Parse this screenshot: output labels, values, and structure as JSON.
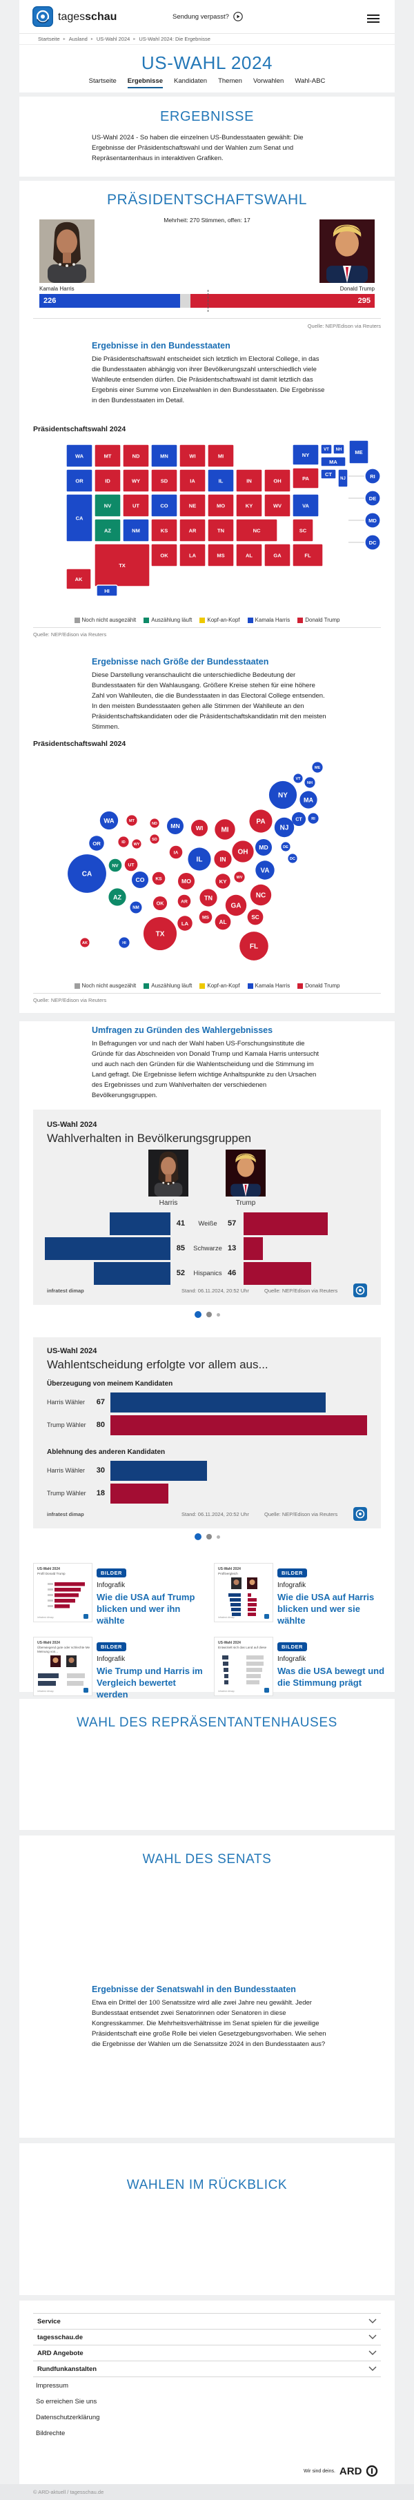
{
  "header": {
    "logo_prefix": "tages",
    "logo_suffix": "schau",
    "missed_show": "Sendung verpasst?"
  },
  "breadcrumb": [
    "Startseite",
    "Ausland",
    "US-Wahl 2024",
    "US-Wahl 2024: Die Ergebnisse"
  ],
  "hub": {
    "title": "US-WAHL 2024",
    "tabs": [
      {
        "label": "Startseite",
        "active": false
      },
      {
        "label": "Ergebnisse",
        "active": true
      },
      {
        "label": "Kandidaten",
        "active": false
      },
      {
        "label": "Themen",
        "active": false
      },
      {
        "label": "Vorwahlen",
        "active": false
      },
      {
        "label": "Wahl-ABC",
        "active": false
      }
    ]
  },
  "sections": {
    "ergebnisse": {
      "title": "ERGEBNISSE",
      "intro": "US-Wahl 2024 - So haben die einzelnen US-Bundesstaaten gewählt: Die Ergebnisse der Präsidentschaftswahl und der Wahlen zum Senat und Repräsentantenhaus in interaktiven Grafiken."
    },
    "praesidentschaftswahl": {
      "title": "PRÄSIDENTSCHAFTSWAHL",
      "majority_note": "Mehrheit: 270 Stimmen, offen: 17",
      "candidates": [
        {
          "name": "Kamala Harris",
          "votes": 226
        },
        {
          "name": "Donald Trump",
          "votes": 295
        }
      ],
      "open_votes": 17,
      "source": "Quelle: NEP/Edison via Reuters"
    },
    "bundesstaaten": {
      "heading": "Ergebnisse in den Bundesstaaten",
      "text": "Die Präsidentschaftswahl entscheidet sich letztlich im Electoral College, in das die Bundesstaaten abhängig von ihrer Bevölkerungszahl unterschiedlich viele Wahlleute entsenden dürfen. Die Präsidentschaftswahl ist damit letztlich das Ergebnis einer Summe von Einzelwahlen in den Bundesstaaten. Die Ergebnisse in den Bundesstaaten im Detail.",
      "chart_label": "Präsidentschaftswahl 2024",
      "source": "Quelle: NEP/Edison via Reuters"
    },
    "groesse": {
      "heading": "Ergebnisse nach Größe der Bundesstaaten",
      "text": "Diese Darstellung veranschaulicht die unterschiedliche Bedeutung der Bundesstaaten für den Wahlausgang. Größere Kreise stehen für eine höhere Zahl von Wahlleuten, die die Bundesstaaten in das Electoral College entsenden. In den meisten Bundesstaaten gehen alle Stimmen der Wahlleute an den Präsidentschaftskandidaten oder die Präsidentschaftskandidatin mit den meisten Stimmen.",
      "chart_label": "Präsidentschaftswahl 2024",
      "source": "Quelle: NEP/Edison via Reuters"
    },
    "umfragen": {
      "heading": "Umfragen zu Gründen des Wahlergebnisses",
      "text": "In Befragungen vor und nach der Wahl haben US-Forschungsinstitute die Gründe für das Abschneiden von Donald Trump und Kamala Harris untersucht und auch nach den Gründen für die Wahlentscheidung und die Stimmung im Land gefragt. Die Ergebnisse liefern wichtige Anhaltspunkte zu den Ursachen des Ergebnisses und zum Wahlverhalten der verschiedenen Bevölkerungsgruppen."
    },
    "haus": {
      "title": "WAHL DES REPRÄSENTANTENHAUSES"
    },
    "senat": {
      "title": "WAHL DES SENATS",
      "heading": "Ergebnisse der Senatswahl in den Bundesstaaten",
      "text": "Etwa ein Drittel der 100 Senatssitze wird alle zwei Jahre neu gewählt. Jeder Bundesstaat entsendet zwei Senatorinnen oder Senatoren in diese Kongresskammer. Die Mehrheitsverhältnisse im Senat spielen für die jeweilige Präsidentschaft eine große Rolle bei vielen Gesetzgebungsvorhaben. Wie sehen die Ergebnisse der Wahlen um die Senatssitze 2024 in den Bundesstaaten aus?"
    },
    "rueckblick": {
      "title": "WAHLEN IM RÜCKBLICK"
    }
  },
  "legend": [
    "Noch nicht ausgezählt",
    "Auszählung läuft",
    "Kopf-an-Kopf",
    "Kamala Harris",
    "Donald Trump"
  ],
  "status_colors": {
    "open": "#9e9e9e",
    "counting": "#0e8a68",
    "tossup": "#eec900",
    "harris": "#1b4ac9",
    "trump": "#d02033"
  },
  "palette": {
    "harris_dark": "#123f7e",
    "trump_dark": "#a30d33",
    "gray_bar": "#c9c9c9"
  },
  "infographics": [
    {
      "kicker": "US-Wahl 2024",
      "title": "Wahlverhalten in Bevölkerungsgruppen",
      "col_labels": [
        "Harris",
        "Trump"
      ],
      "brand": "infratest dimap",
      "stand": "Stand: 06.11.2024, 20:52 Uhr",
      "quelle": "Quelle: NEP/Edison via Reuters"
    },
    {
      "kicker": "US-Wahl 2024",
      "title": "Wahlentscheidung erfolgte vor allem aus...",
      "brand": "infratest dimap",
      "stand": "Stand: 06.11.2024, 20:52 Uhr",
      "quelle": "Quelle: NEP/Edison via Reuters"
    }
  ],
  "teasers": [
    {
      "badge": "BILDER",
      "kicker": "Infografik",
      "title": "Wie die USA auf Trump blicken und wer ihn wählte",
      "thumb_kicker": "US-Wahl 2024",
      "thumb_title": "Profil Donald Trump",
      "thumb_type": "bars-red"
    },
    {
      "badge": "BILDER",
      "kicker": "Infografik",
      "title": "Wie die USA auf Harris blicken und wer sie wählte",
      "thumb_kicker": "US-Wahl 2024",
      "thumb_title": "Profilvergleich",
      "thumb_type": "compare"
    },
    {
      "badge": "BILDER",
      "kicker": "Infografik",
      "title": "Wie Trump und Harris im Vergleich bewertet werden",
      "thumb_kicker": "US-Wahl 2024",
      "thumb_title": "Überwiegend gute oder schlechte Meinung von...",
      "thumb_type": "opinion"
    },
    {
      "badge": "BILDER",
      "kicker": "Infografik",
      "title": "Was die USA bewegt und die Stimmung prägt",
      "thumb_kicker": "US-Wahl 2024",
      "thumb_title": "Entwickelt sich das Land auf diesem Gebiet in die richtige oder die falsche Richtung?",
      "thumb_type": "direction"
    }
  ],
  "footer": {
    "accordion": [
      "Service",
      "tagesschau.de",
      "ARD Angebote",
      "Rundfunkanstalten"
    ],
    "links": [
      "Impressum",
      "So erreichen Sie uns",
      "Datenschutzerklärung",
      "Bildrechte"
    ],
    "ard_claim": "Wir sind deins.",
    "ard": "ARD",
    "copyright": "© ARD-aktuell / tagesschau.de"
  },
  "chart_data": [
    {
      "type": "bar",
      "name": "electoral-college-result",
      "title": "Präsidentschaftswahl 2024",
      "series": [
        {
          "name": "Kamala Harris",
          "value": 226
        },
        {
          "name": "offen",
          "value": 17
        },
        {
          "name": "Donald Trump",
          "value": 295
        }
      ],
      "majority": 270,
      "total": 538
    },
    {
      "type": "heatmap",
      "name": "choropleth-bundesstaaten",
      "title": "Präsidentschaftswahl 2024",
      "legend_position": "bottom",
      "states": [
        {
          "id": "WA",
          "status": "harris"
        },
        {
          "id": "OR",
          "status": "harris"
        },
        {
          "id": "CA",
          "status": "harris"
        },
        {
          "id": "NV",
          "status": "counting"
        },
        {
          "id": "AZ",
          "status": "counting"
        },
        {
          "id": "ID",
          "status": "trump"
        },
        {
          "id": "MT",
          "status": "trump"
        },
        {
          "id": "WY",
          "status": "trump"
        },
        {
          "id": "UT",
          "status": "trump"
        },
        {
          "id": "CO",
          "status": "harris"
        },
        {
          "id": "NM",
          "status": "harris"
        },
        {
          "id": "ND",
          "status": "trump"
        },
        {
          "id": "SD",
          "status": "trump"
        },
        {
          "id": "NE",
          "status": "trump"
        },
        {
          "id": "KS",
          "status": "trump"
        },
        {
          "id": "OK",
          "status": "trump"
        },
        {
          "id": "TX",
          "status": "trump"
        },
        {
          "id": "MN",
          "status": "harris"
        },
        {
          "id": "IA",
          "status": "trump"
        },
        {
          "id": "MO",
          "status": "trump"
        },
        {
          "id": "AR",
          "status": "trump"
        },
        {
          "id": "LA",
          "status": "trump"
        },
        {
          "id": "WI",
          "status": "trump"
        },
        {
          "id": "IL",
          "status": "harris"
        },
        {
          "id": "MS",
          "status": "trump"
        },
        {
          "id": "MI",
          "status": "trump"
        },
        {
          "id": "IN",
          "status": "trump"
        },
        {
          "id": "KY",
          "status": "trump"
        },
        {
          "id": "TN",
          "status": "trump"
        },
        {
          "id": "AL",
          "status": "trump"
        },
        {
          "id": "OH",
          "status": "trump"
        },
        {
          "id": "GA",
          "status": "trump"
        },
        {
          "id": "FL",
          "status": "trump"
        },
        {
          "id": "WV",
          "status": "trump"
        },
        {
          "id": "VA",
          "status": "harris"
        },
        {
          "id": "NC",
          "status": "trump"
        },
        {
          "id": "SC",
          "status": "trump"
        },
        {
          "id": "PA",
          "status": "trump"
        },
        {
          "id": "NY",
          "status": "harris"
        },
        {
          "id": "NJ",
          "status": "harris"
        },
        {
          "id": "VT",
          "status": "harris"
        },
        {
          "id": "NH",
          "status": "harris"
        },
        {
          "id": "ME",
          "status": "harris"
        },
        {
          "id": "MA",
          "status": "harris"
        },
        {
          "id": "CT",
          "status": "harris"
        },
        {
          "id": "RI",
          "status": "harris"
        },
        {
          "id": "DE",
          "status": "harris"
        },
        {
          "id": "MD",
          "status": "harris"
        },
        {
          "id": "DC",
          "status": "harris"
        },
        {
          "id": "AK",
          "status": "trump"
        },
        {
          "id": "HI",
          "status": "harris"
        }
      ]
    },
    {
      "type": "scatter",
      "name": "bubble-cartogram-wahlleute",
      "title": "Präsidentschaftswahl 2024",
      "legend_position": "bottom",
      "states": [
        {
          "id": "CA",
          "ev": 54,
          "status": "harris"
        },
        {
          "id": "TX",
          "ev": 40,
          "status": "trump"
        },
        {
          "id": "FL",
          "ev": 30,
          "status": "trump"
        },
        {
          "id": "NY",
          "ev": 28,
          "status": "harris"
        },
        {
          "id": "PA",
          "ev": 19,
          "status": "trump"
        },
        {
          "id": "IL",
          "ev": 19,
          "status": "harris"
        },
        {
          "id": "OH",
          "ev": 17,
          "status": "trump"
        },
        {
          "id": "GA",
          "ev": 16,
          "status": "trump"
        },
        {
          "id": "NC",
          "ev": 16,
          "status": "trump"
        },
        {
          "id": "MI",
          "ev": 15,
          "status": "trump"
        },
        {
          "id": "NJ",
          "ev": 14,
          "status": "harris"
        },
        {
          "id": "VA",
          "ev": 13,
          "status": "harris"
        },
        {
          "id": "WA",
          "ev": 12,
          "status": "harris"
        },
        {
          "id": "AZ",
          "ev": 11,
          "status": "counting"
        },
        {
          "id": "MA",
          "ev": 11,
          "status": "harris"
        },
        {
          "id": "TN",
          "ev": 11,
          "status": "trump"
        },
        {
          "id": "IN",
          "ev": 11,
          "status": "trump"
        },
        {
          "id": "MD",
          "ev": 10,
          "status": "harris"
        },
        {
          "id": "MN",
          "ev": 10,
          "status": "harris"
        },
        {
          "id": "MO",
          "ev": 10,
          "status": "trump"
        },
        {
          "id": "WI",
          "ev": 10,
          "status": "trump"
        },
        {
          "id": "CO",
          "ev": 10,
          "status": "harris"
        },
        {
          "id": "AL",
          "ev": 9,
          "status": "trump"
        },
        {
          "id": "SC",
          "ev": 9,
          "status": "trump"
        },
        {
          "id": "KY",
          "ev": 8,
          "status": "trump"
        },
        {
          "id": "LA",
          "ev": 8,
          "status": "trump"
        },
        {
          "id": "OR",
          "ev": 8,
          "status": "harris"
        },
        {
          "id": "OK",
          "ev": 7,
          "status": "trump"
        },
        {
          "id": "CT",
          "ev": 7,
          "status": "harris"
        },
        {
          "id": "UT",
          "ev": 6,
          "status": "trump"
        },
        {
          "id": "IA",
          "ev": 6,
          "status": "trump"
        },
        {
          "id": "NV",
          "ev": 6,
          "status": "counting"
        },
        {
          "id": "AR",
          "ev": 6,
          "status": "trump"
        },
        {
          "id": "MS",
          "ev": 6,
          "status": "trump"
        },
        {
          "id": "KS",
          "ev": 6,
          "status": "trump"
        },
        {
          "id": "NM",
          "ev": 5,
          "status": "harris"
        },
        {
          "id": "NE",
          "ev": 5,
          "status": "trump"
        },
        {
          "id": "WV",
          "ev": 4,
          "status": "trump"
        },
        {
          "id": "ID",
          "ev": 4,
          "status": "trump"
        },
        {
          "id": "HI",
          "ev": 4,
          "status": "harris"
        },
        {
          "id": "NH",
          "ev": 4,
          "status": "harris"
        },
        {
          "id": "ME",
          "ev": 4,
          "status": "harris"
        },
        {
          "id": "RI",
          "ev": 4,
          "status": "harris"
        },
        {
          "id": "MT",
          "ev": 4,
          "status": "trump"
        },
        {
          "id": "DE",
          "ev": 3,
          "status": "harris"
        },
        {
          "id": "SD",
          "ev": 3,
          "status": "trump"
        },
        {
          "id": "ND",
          "ev": 3,
          "status": "trump"
        },
        {
          "id": "AK",
          "ev": 3,
          "status": "trump"
        },
        {
          "id": "VT",
          "ev": 3,
          "status": "harris"
        },
        {
          "id": "WY",
          "ev": 3,
          "status": "trump"
        },
        {
          "id": "DC",
          "ev": 3,
          "status": "harris"
        }
      ]
    },
    {
      "type": "bar",
      "name": "wahlverhalten-gruppen",
      "title": "Wahlverhalten in Bevölkerungsgruppen",
      "categories": [
        "Weiße",
        "Schwarze",
        "Hispanics"
      ],
      "series": [
        {
          "name": "Harris",
          "values": [
            41,
            85,
            52
          ]
        },
        {
          "name": "Trump",
          "values": [
            57,
            13,
            46
          ]
        }
      ]
    },
    {
      "type": "bar",
      "name": "wahlentscheidung-gruende",
      "title": "Wahlentscheidung erfolgte vor allem aus...",
      "groups": [
        {
          "label": "Überzeugung von meinem Kandidaten",
          "bars": [
            {
              "label": "Harris Wähler",
              "value": 67,
              "color": "harris_dark"
            },
            {
              "label": "Trump Wähler",
              "value": 80,
              "color": "trump_dark"
            }
          ]
        },
        {
          "label": "Ablehnung des anderen Kandidaten",
          "bars": [
            {
              "label": "Harris Wähler",
              "value": 30,
              "color": "harris_dark"
            },
            {
              "label": "Trump Wähler",
              "value": 18,
              "color": "trump_dark"
            }
          ]
        }
      ]
    }
  ]
}
